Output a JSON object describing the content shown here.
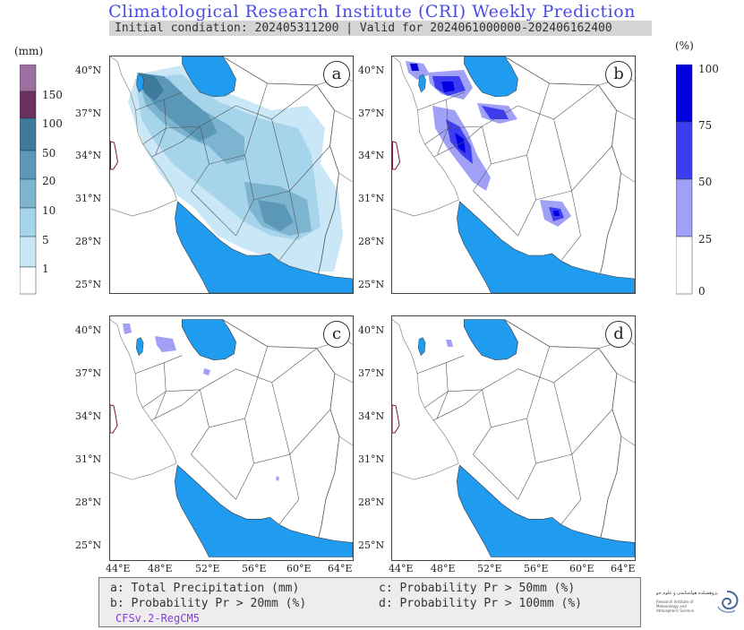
{
  "header": {
    "title": "Climatological Research Institute (CRI) Weekly Prediction",
    "subtitle": "Initial condiation: 202405311200 | Valid for 2024061000000-202406162400"
  },
  "colorbar_left": {
    "unit": "(mm)",
    "labels": [
      "150",
      "100",
      "50",
      "20",
      "10",
      "5",
      "1"
    ],
    "colors": [
      "#9b6fa0",
      "#6b2f62",
      "#3d7a9c",
      "#5b98b8",
      "#7db4d0",
      "#a6d4ea",
      "#c9e7f6",
      "#ffffff"
    ]
  },
  "colorbar_right": {
    "unit": "(%)",
    "labels": [
      "100",
      "75",
      "50",
      "25",
      "0"
    ],
    "colors": [
      "#0000e0",
      "#3c3cf0",
      "#a0a0f6",
      "#ffffff"
    ]
  },
  "axes": {
    "lat_labels": [
      "40°N",
      "37°N",
      "34°N",
      "31°N",
      "28°N",
      "25°N"
    ],
    "lon_labels": [
      "44°E",
      "48°E",
      "52°E",
      "56°E",
      "60°E",
      "64°E"
    ]
  },
  "panels": [
    {
      "label": "a"
    },
    {
      "label": "b"
    },
    {
      "label": "c"
    },
    {
      "label": "d"
    }
  ],
  "legend": {
    "a": "a: Total Precipitation (mm)",
    "b": "b: Probability Pr > 20mm (%)",
    "c": "c: Probability Pr > 50mm (%)",
    "d": "d: Probability Pr > 100mm (%)",
    "model": "CFSv.2-RegCM5"
  },
  "logo": {
    "text_fa": "پژوهشکده هواشناسی و علوم جو",
    "text_en": "Research Institute of Meteorology and Atmospheric Science"
  },
  "colors": {
    "water": "#1f9bf0",
    "title": "#4a4ae8",
    "model_text": "#8a3be0"
  }
}
